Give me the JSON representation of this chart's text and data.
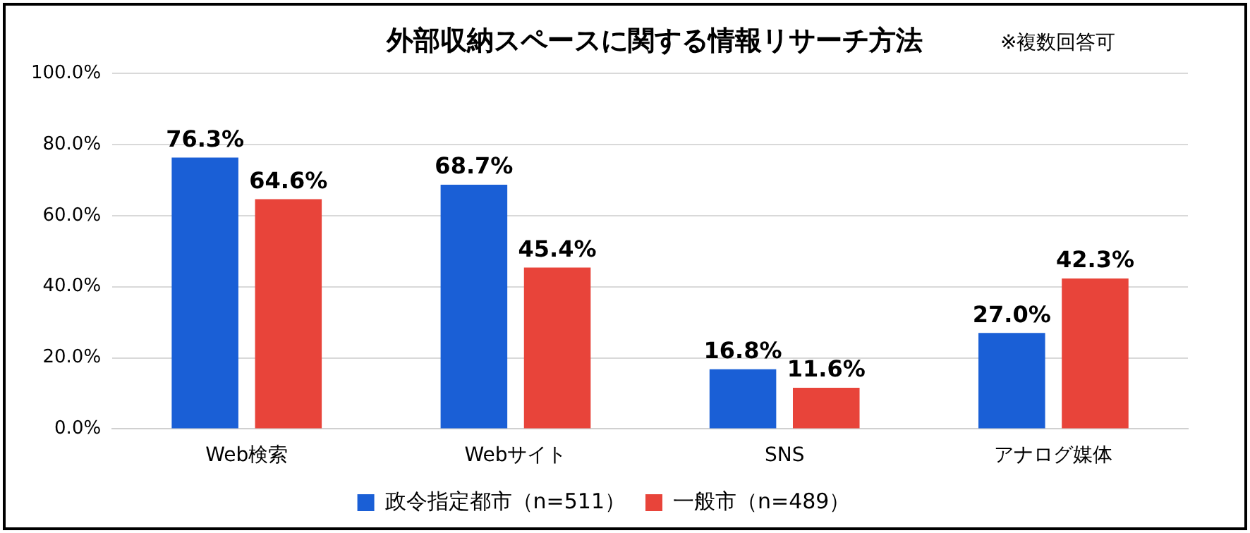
{
  "chart_data": {
    "type": "bar",
    "title": "外部収納スペースに関する情報リサーチ方法",
    "subtitle": "※複数回答可",
    "categories": [
      "Web検索",
      "Webサイト",
      "SNS",
      "アナログ媒体"
    ],
    "series": [
      {
        "name": "政令指定都市（n=511）",
        "color": "#1a5fd6",
        "values": [
          76.3,
          68.7,
          16.8,
          27.0
        ],
        "value_labels": [
          "76.3%",
          "68.7%",
          "16.8%",
          "27.0%"
        ]
      },
      {
        "name": "一般市（n=489）",
        "color": "#e8443a",
        "values": [
          64.6,
          45.4,
          11.6,
          42.3
        ],
        "value_labels": [
          "64.6%",
          "45.4%",
          "11.6%",
          "42.3%"
        ]
      }
    ],
    "ylim": [
      0,
      100
    ],
    "yticks": [
      {
        "value": 0,
        "label": "0.0%"
      },
      {
        "value": 20,
        "label": "20.0%"
      },
      {
        "value": 40,
        "label": "40.0%"
      },
      {
        "value": 60,
        "label": "60.0%"
      },
      {
        "value": 80,
        "label": "80.0%"
      },
      {
        "value": 100,
        "label": "100.0%"
      }
    ],
    "grid": "y",
    "legend": "bottom"
  }
}
